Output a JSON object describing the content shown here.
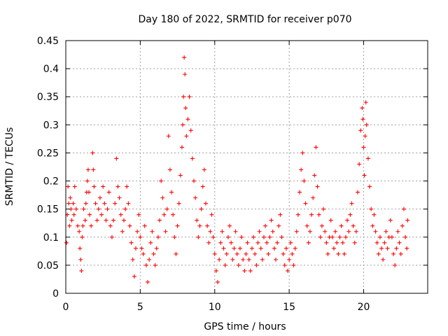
{
  "chart_data": {
    "type": "scatter",
    "title": "Day 180 of 2022, SRMTID for receiver p070",
    "xlabel": "GPS time / hours",
    "ylabel": "SRMTID / TECUs",
    "xlim": [
      0,
      24.3
    ],
    "ylim": [
      0,
      0.45
    ],
    "xticks": [
      0,
      5,
      10,
      15,
      20
    ],
    "yticks": [
      0,
      0.05,
      0.1,
      0.15,
      0.2,
      0.25,
      0.3,
      0.35,
      0.4,
      0.45
    ],
    "xtick_labels": [
      "0",
      "5",
      "10",
      "15",
      "20"
    ],
    "ytick_labels": [
      "0",
      "0.05",
      "0.1",
      "0.15",
      "0.2",
      "0.25",
      "0.3",
      "0.35",
      "0.4",
      "0.45"
    ],
    "grid": true,
    "marker": "+",
    "color": "#ff0000",
    "series": [
      {
        "name": "SRMTID",
        "points": [
          [
            0.05,
            0.09
          ],
          [
            0.1,
            0.14
          ],
          [
            0.15,
            0.19
          ],
          [
            0.2,
            0.16
          ],
          [
            0.25,
            0.12
          ],
          [
            0.3,
            0.17
          ],
          [
            0.35,
            0.15
          ],
          [
            0.4,
            0.13
          ],
          [
            0.5,
            0.16
          ],
          [
            0.55,
            0.14
          ],
          [
            0.6,
            0.19
          ],
          [
            0.7,
            0.15
          ],
          [
            0.8,
            0.12
          ],
          [
            0.9,
            0.11
          ],
          [
            0.95,
            0.08
          ],
          [
            1.0,
            0.06
          ],
          [
            1.05,
            0.04
          ],
          [
            1.1,
            0.1
          ],
          [
            1.15,
            0.12
          ],
          [
            1.2,
            0.15
          ],
          [
            1.3,
            0.13
          ],
          [
            1.35,
            0.16
          ],
          [
            1.4,
            0.18
          ],
          [
            1.45,
            0.2
          ],
          [
            1.5,
            0.22
          ],
          [
            1.55,
            0.18
          ],
          [
            1.6,
            0.14
          ],
          [
            1.7,
            0.12
          ],
          [
            1.8,
            0.25
          ],
          [
            1.85,
            0.22
          ],
          [
            1.9,
            0.19
          ],
          [
            2.0,
            0.16
          ],
          [
            2.1,
            0.13
          ],
          [
            2.2,
            0.15
          ],
          [
            2.3,
            0.17
          ],
          [
            2.4,
            0.14
          ],
          [
            2.5,
            0.19
          ],
          [
            2.6,
            0.16
          ],
          [
            2.7,
            0.13
          ],
          [
            2.8,
            0.15
          ],
          [
            2.9,
            0.18
          ],
          [
            3.0,
            0.12
          ],
          [
            3.1,
            0.1
          ],
          [
            3.2,
            0.13
          ],
          [
            3.3,
            0.16
          ],
          [
            3.4,
            0.24
          ],
          [
            3.5,
            0.19
          ],
          [
            3.6,
            0.17
          ],
          [
            3.7,
            0.14
          ],
          [
            3.8,
            0.11
          ],
          [
            3.9,
            0.13
          ],
          [
            4.0,
            0.15
          ],
          [
            4.1,
            0.19
          ],
          [
            4.2,
            0.16
          ],
          [
            4.3,
            0.12
          ],
          [
            4.4,
            0.09
          ],
          [
            4.5,
            0.06
          ],
          [
            4.6,
            0.03
          ],
          [
            4.7,
            0.08
          ],
          [
            4.8,
            0.11
          ],
          [
            4.9,
            0.14
          ],
          [
            5.0,
            0.1
          ],
          [
            5.1,
            0.08
          ],
          [
            5.2,
            0.07
          ],
          [
            5.3,
            0.12
          ],
          [
            5.4,
            0.05
          ],
          [
            5.5,
            0.02
          ],
          [
            5.6,
            0.06
          ],
          [
            5.7,
            0.09
          ],
          [
            5.8,
            0.11
          ],
          [
            5.9,
            0.07
          ],
          [
            6.0,
            0.05
          ],
          [
            6.1,
            0.08
          ],
          [
            6.2,
            0.1
          ],
          [
            6.3,
            0.13
          ],
          [
            6.4,
            0.2
          ],
          [
            6.5,
            0.17
          ],
          [
            6.6,
            0.14
          ],
          [
            6.7,
            0.11
          ],
          [
            6.8,
            0.15
          ],
          [
            6.9,
            0.28
          ],
          [
            7.0,
            0.22
          ],
          [
            7.1,
            0.18
          ],
          [
            7.2,
            0.14
          ],
          [
            7.3,
            0.1
          ],
          [
            7.4,
            0.07
          ],
          [
            7.5,
            0.12
          ],
          [
            7.6,
            0.16
          ],
          [
            7.7,
            0.21
          ],
          [
            7.8,
            0.26
          ],
          [
            7.85,
            0.3
          ],
          [
            7.9,
            0.35
          ],
          [
            7.95,
            0.42
          ],
          [
            8.0,
            0.39
          ],
          [
            8.05,
            0.33
          ],
          [
            8.1,
            0.28
          ],
          [
            8.2,
            0.31
          ],
          [
            8.3,
            0.35
          ],
          [
            8.4,
            0.29
          ],
          [
            8.5,
            0.24
          ],
          [
            8.6,
            0.2
          ],
          [
            8.7,
            0.17
          ],
          [
            8.8,
            0.13
          ],
          [
            8.9,
            0.1
          ],
          [
            9.0,
            0.12
          ],
          [
            9.1,
            0.15
          ],
          [
            9.2,
            0.19
          ],
          [
            9.3,
            0.22
          ],
          [
            9.4,
            0.16
          ],
          [
            9.5,
            0.12
          ],
          [
            9.6,
            0.09
          ],
          [
            9.7,
            0.11
          ],
          [
            9.8,
            0.14
          ],
          [
            9.9,
            0.1
          ],
          [
            10.0,
            0.07
          ],
          [
            10.1,
            0.04
          ],
          [
            10.2,
            0.02
          ],
          [
            10.3,
            0.06
          ],
          [
            10.4,
            0.09
          ],
          [
            10.5,
            0.11
          ],
          [
            10.6,
            0.08
          ],
          [
            10.7,
            0.05
          ],
          [
            10.8,
            0.07
          ],
          [
            10.9,
            0.1
          ],
          [
            11.0,
            0.12
          ],
          [
            11.1,
            0.09
          ],
          [
            11.2,
            0.06
          ],
          [
            11.3,
            0.08
          ],
          [
            11.4,
            0.11
          ],
          [
            11.5,
            0.07
          ],
          [
            11.6,
            0.05
          ],
          [
            11.7,
            0.08
          ],
          [
            11.8,
            0.1
          ],
          [
            11.9,
            0.06
          ],
          [
            12.0,
            0.04
          ],
          [
            12.1,
            0.07
          ],
          [
            12.2,
            0.09
          ],
          [
            12.3,
            0.06
          ],
          [
            12.4,
            0.04
          ],
          [
            12.5,
            0.08
          ],
          [
            12.6,
            0.1
          ],
          [
            12.7,
            0.07
          ],
          [
            12.8,
            0.05
          ],
          [
            12.9,
            0.09
          ],
          [
            13.0,
            0.11
          ],
          [
            13.1,
            0.08
          ],
          [
            13.2,
            0.06
          ],
          [
            13.3,
            0.1
          ],
          [
            13.4,
            0.12
          ],
          [
            13.5,
            0.09
          ],
          [
            13.6,
            0.07
          ],
          [
            13.7,
            0.1
          ],
          [
            13.8,
            0.13
          ],
          [
            13.9,
            0.11
          ],
          [
            14.0,
            0.08
          ],
          [
            14.1,
            0.06
          ],
          [
            14.2,
            0.09
          ],
          [
            14.3,
            0.12
          ],
          [
            14.4,
            0.14
          ],
          [
            14.5,
            0.1
          ],
          [
            14.6,
            0.07
          ],
          [
            14.7,
            0.05
          ],
          [
            14.8,
            0.08
          ],
          [
            14.9,
            0.04
          ],
          [
            15.0,
            0.06
          ],
          [
            15.1,
            0.09
          ],
          [
            15.2,
            0.07
          ],
          [
            15.3,
            0.05
          ],
          [
            15.4,
            0.08
          ],
          [
            15.5,
            0.11
          ],
          [
            15.6,
            0.14
          ],
          [
            15.7,
            0.18
          ],
          [
            15.8,
            0.22
          ],
          [
            15.9,
            0.25
          ],
          [
            16.0,
            0.2
          ],
          [
            16.1,
            0.16
          ],
          [
            16.2,
            0.12
          ],
          [
            16.3,
            0.09
          ],
          [
            16.4,
            0.11
          ],
          [
            16.5,
            0.14
          ],
          [
            16.6,
            0.17
          ],
          [
            16.7,
            0.21
          ],
          [
            16.8,
            0.26
          ],
          [
            16.9,
            0.19
          ],
          [
            17.0,
            0.14
          ],
          [
            17.1,
            0.1
          ],
          [
            17.2,
            0.12
          ],
          [
            17.3,
            0.15
          ],
          [
            17.4,
            0.11
          ],
          [
            17.5,
            0.09
          ],
          [
            17.6,
            0.07
          ],
          [
            17.7,
            0.1
          ],
          [
            17.8,
            0.13
          ],
          [
            17.9,
            0.1
          ],
          [
            18.0,
            0.08
          ],
          [
            18.1,
            0.11
          ],
          [
            18.2,
            0.09
          ],
          [
            18.3,
            0.07
          ],
          [
            18.4,
            0.1
          ],
          [
            18.5,
            0.12
          ],
          [
            18.6,
            0.09
          ],
          [
            18.7,
            0.07
          ],
          [
            18.8,
            0.1
          ],
          [
            18.9,
            0.13
          ],
          [
            19.0,
            0.11
          ],
          [
            19.1,
            0.14
          ],
          [
            19.2,
            0.16
          ],
          [
            19.3,
            0.12
          ],
          [
            19.4,
            0.09
          ],
          [
            19.5,
            0.11
          ],
          [
            19.6,
            0.18
          ],
          [
            19.7,
            0.23
          ],
          [
            19.8,
            0.29
          ],
          [
            19.9,
            0.33
          ],
          [
            19.95,
            0.31
          ],
          [
            20.0,
            0.26
          ],
          [
            20.05,
            0.21
          ],
          [
            20.1,
            0.28
          ],
          [
            20.15,
            0.34
          ],
          [
            20.2,
            0.3
          ],
          [
            20.3,
            0.24
          ],
          [
            20.4,
            0.19
          ],
          [
            20.5,
            0.15
          ],
          [
            20.6,
            0.12
          ],
          [
            20.7,
            0.14
          ],
          [
            20.8,
            0.11
          ],
          [
            20.9,
            0.09
          ],
          [
            21.0,
            0.07
          ],
          [
            21.1,
            0.1
          ],
          [
            21.2,
            0.08
          ],
          [
            21.3,
            0.06
          ],
          [
            21.4,
            0.09
          ],
          [
            21.5,
            0.11
          ],
          [
            21.6,
            0.08
          ],
          [
            21.7,
            0.1
          ],
          [
            21.8,
            0.13
          ],
          [
            21.9,
            0.1
          ],
          [
            22.0,
            0.07
          ],
          [
            22.1,
            0.05
          ],
          [
            22.2,
            0.08
          ],
          [
            22.3,
            0.11
          ],
          [
            22.4,
            0.09
          ],
          [
            22.5,
            0.07
          ],
          [
            22.6,
            0.12
          ],
          [
            22.7,
            0.15
          ],
          [
            22.8,
            0.1
          ],
          [
            22.9,
            0.08
          ],
          [
            22.95,
            0.13
          ]
        ]
      }
    ]
  }
}
